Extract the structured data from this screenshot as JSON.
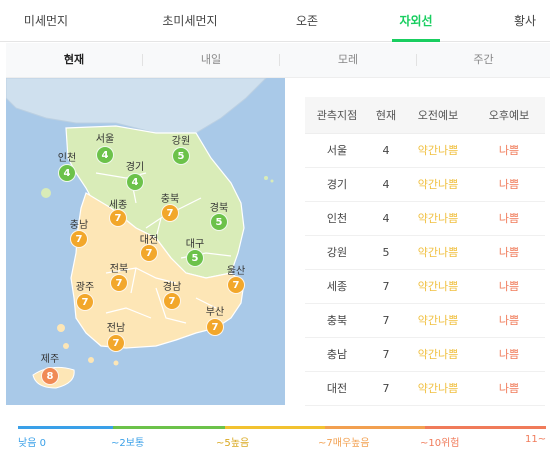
{
  "top_tabs": [
    "미세먼지",
    "초미세먼지",
    "오존",
    "자외선",
    "황사"
  ],
  "sub_tabs": [
    "현재",
    "내일",
    "모레",
    "주간"
  ],
  "regions": [
    {
      "name": "서울",
      "value": "4",
      "level": "good"
    },
    {
      "name": "인천",
      "value": "4",
      "level": "good"
    },
    {
      "name": "강원",
      "value": "5",
      "level": "good"
    },
    {
      "name": "경기",
      "value": "4",
      "level": "good"
    },
    {
      "name": "세종",
      "value": "7",
      "level": "normal"
    },
    {
      "name": "충북",
      "value": "7",
      "level": "normal"
    },
    {
      "name": "충남",
      "value": "7",
      "level": "normal"
    },
    {
      "name": "경북",
      "value": "5",
      "level": "good"
    },
    {
      "name": "대전",
      "value": "7",
      "level": "normal"
    },
    {
      "name": "대구",
      "value": "5",
      "level": "good"
    },
    {
      "name": "전북",
      "value": "7",
      "level": "normal"
    },
    {
      "name": "울산",
      "value": "7",
      "level": "normal"
    },
    {
      "name": "광주",
      "value": "7",
      "level": "normal"
    },
    {
      "name": "경남",
      "value": "7",
      "level": "normal"
    },
    {
      "name": "부산",
      "value": "7",
      "level": "normal"
    },
    {
      "name": "전남",
      "value": "7",
      "level": "normal"
    },
    {
      "name": "제주",
      "value": "8",
      "level": "high"
    }
  ],
  "table": {
    "headers": [
      "관측지점",
      "현재",
      "오전예보",
      "오후예보"
    ],
    "rows": [
      {
        "station": "서울",
        "now": "4",
        "am": "약간나쁨",
        "pm": "나쁨"
      },
      {
        "station": "경기",
        "now": "4",
        "am": "약간나쁨",
        "pm": "나쁨"
      },
      {
        "station": "인천",
        "now": "4",
        "am": "약간나쁨",
        "pm": "나쁨"
      },
      {
        "station": "강원",
        "now": "5",
        "am": "약간나쁨",
        "pm": "나쁨"
      },
      {
        "station": "세종",
        "now": "7",
        "am": "약간나쁨",
        "pm": "나쁨"
      },
      {
        "station": "충북",
        "now": "7",
        "am": "약간나쁨",
        "pm": "나쁨"
      },
      {
        "station": "충남",
        "now": "7",
        "am": "약간나쁨",
        "pm": "나쁨"
      },
      {
        "station": "대전",
        "now": "7",
        "am": "약간나쁨",
        "pm": "나쁨"
      }
    ]
  },
  "legend": [
    {
      "label": "낮음 0",
      "color": "#3aa0e8"
    },
    {
      "label": "~2보통",
      "color": "#6cc24a"
    },
    {
      "label": "~5높음",
      "color": "#f2c230"
    },
    {
      "label": "~7매우높음",
      "color": "#f2a050"
    },
    {
      "label": "~10위험",
      "color": "#f07b5a"
    },
    {
      "label": "11~",
      "color": "#f07b5a"
    }
  ],
  "colors": {
    "accent": "#19ce60",
    "sea": "#a9c9e8",
    "land_good": "#d9ecb8",
    "land_normal": "#fde6b6",
    "marker_good": "#6cc24a",
    "marker_normal": "#f2a72b",
    "marker_high": "#f08a55"
  }
}
